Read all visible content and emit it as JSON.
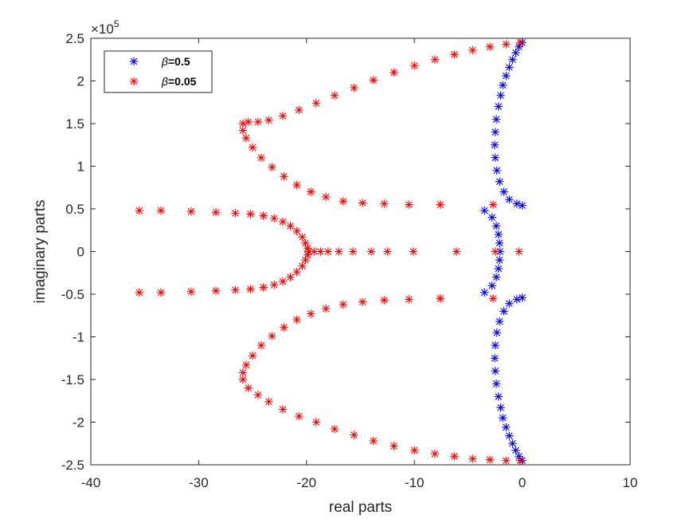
{
  "chart_data": {
    "type": "scatter",
    "xlabel": "real parts",
    "ylabel": "imaginary parts",
    "y_exponent_label": "×10",
    "y_exponent_power": "5",
    "xlim": [
      -40,
      10
    ],
    "ylim": [
      -2.5,
      2.5
    ],
    "y_scale_factor": 100000,
    "xticks": [
      -40,
      -30,
      -20,
      -10,
      0,
      10
    ],
    "xtick_labels": [
      "-40",
      "-30",
      "-20",
      "-10",
      "0",
      "10"
    ],
    "yticks": [
      -2.5,
      -2,
      -1.5,
      -1,
      -0.5,
      0,
      0.5,
      1,
      1.5,
      2,
      2.5
    ],
    "ytick_labels": [
      "-2.5",
      "-2",
      "-1.5",
      "-1",
      "-0.5",
      "0",
      "0.5",
      "1",
      "1.5",
      "2",
      "2.5"
    ],
    "grid": false,
    "legend_placement": "top-left",
    "marker": "*",
    "series": [
      {
        "name": "β=0.5",
        "legend_symbol": "β",
        "legend_rest": "=0.5",
        "color": "#0000ff",
        "points": [
          [
            0.0,
            2.45
          ],
          [
            -0.3,
            2.4
          ],
          [
            -0.6,
            2.33
          ],
          [
            -0.9,
            2.25
          ],
          [
            -1.2,
            2.16
          ],
          [
            -1.5,
            2.06
          ],
          [
            -1.8,
            1.95
          ],
          [
            -2.0,
            1.83
          ],
          [
            -2.2,
            1.7
          ],
          [
            -2.4,
            1.55
          ],
          [
            -2.5,
            1.4
          ],
          [
            -2.55,
            1.25
          ],
          [
            -2.5,
            1.1
          ],
          [
            -2.35,
            0.95
          ],
          [
            -2.1,
            0.82
          ],
          [
            -1.7,
            0.7
          ],
          [
            -1.2,
            0.61
          ],
          [
            -0.5,
            0.56
          ],
          [
            0.0,
            0.54
          ],
          [
            -3.5,
            0.48
          ],
          [
            -2.8,
            0.4
          ],
          [
            -2.4,
            0.3
          ],
          [
            -2.2,
            0.2
          ],
          [
            -2.1,
            0.1
          ],
          [
            -2.05,
            0.0
          ],
          [
            -2.1,
            -0.1
          ],
          [
            -2.2,
            -0.2
          ],
          [
            -2.4,
            -0.3
          ],
          [
            -2.8,
            -0.4
          ],
          [
            -3.5,
            -0.48
          ],
          [
            0.0,
            -0.54
          ],
          [
            -0.5,
            -0.56
          ],
          [
            -1.2,
            -0.61
          ],
          [
            -1.7,
            -0.7
          ],
          [
            -2.1,
            -0.82
          ],
          [
            -2.35,
            -0.95
          ],
          [
            -2.5,
            -1.1
          ],
          [
            -2.55,
            -1.25
          ],
          [
            -2.5,
            -1.4
          ],
          [
            -2.4,
            -1.55
          ],
          [
            -2.2,
            -1.7
          ],
          [
            -2.0,
            -1.83
          ],
          [
            -1.8,
            -1.95
          ],
          [
            -1.5,
            -2.06
          ],
          [
            -1.2,
            -2.16
          ],
          [
            -0.9,
            -2.25
          ],
          [
            -0.6,
            -2.33
          ],
          [
            -0.3,
            -2.4
          ],
          [
            0.0,
            -2.45
          ]
        ]
      },
      {
        "name": "β=0.05",
        "legend_symbol": "β",
        "legend_rest": "=0.05",
        "color": "#ff0000",
        "points": [
          [
            -0.2,
            2.45
          ],
          [
            -1.5,
            2.43
          ],
          [
            -3.0,
            2.4
          ],
          [
            -4.6,
            2.36
          ],
          [
            -6.3,
            2.31
          ],
          [
            -8.1,
            2.25
          ],
          [
            -10.0,
            2.18
          ],
          [
            -11.9,
            2.1
          ],
          [
            -13.8,
            2.01
          ],
          [
            -15.6,
            1.92
          ],
          [
            -17.4,
            1.83
          ],
          [
            -19.1,
            1.74
          ],
          [
            -20.7,
            1.66
          ],
          [
            -22.2,
            1.59
          ],
          [
            -23.5,
            1.54
          ],
          [
            -24.5,
            1.52
          ],
          [
            -25.4,
            1.52
          ],
          [
            -25.9,
            1.5
          ],
          [
            -25.9,
            1.42
          ],
          [
            -25.6,
            1.33
          ],
          [
            -25.0,
            1.22
          ],
          [
            -24.2,
            1.1
          ],
          [
            -23.2,
            0.99
          ],
          [
            -22.1,
            0.88
          ],
          [
            -20.9,
            0.78
          ],
          [
            -19.6,
            0.7
          ],
          [
            -18.2,
            0.64
          ],
          [
            -16.6,
            0.59
          ],
          [
            -14.8,
            0.57
          ],
          [
            -12.8,
            0.56
          ],
          [
            -10.5,
            0.55
          ],
          [
            -7.6,
            0.55
          ],
          [
            -2.7,
            0.55
          ],
          [
            -35.5,
            0.48
          ],
          [
            -33.5,
            0.48
          ],
          [
            -30.7,
            0.47
          ],
          [
            -28.4,
            0.46
          ],
          [
            -26.6,
            0.45
          ],
          [
            -25.2,
            0.44
          ],
          [
            -24.0,
            0.42
          ],
          [
            -23.0,
            0.39
          ],
          [
            -22.2,
            0.35
          ],
          [
            -21.5,
            0.3
          ],
          [
            -20.9,
            0.24
          ],
          [
            -20.4,
            0.17
          ],
          [
            -20.1,
            0.1
          ],
          [
            -19.9,
            0.04
          ],
          [
            -19.8,
            0.0
          ],
          [
            -19.3,
            0.0
          ],
          [
            -18.7,
            0.0
          ],
          [
            -18.0,
            0.0
          ],
          [
            -17.0,
            0.0
          ],
          [
            -15.7,
            0.0
          ],
          [
            -14.0,
            0.0
          ],
          [
            -12.5,
            0.0
          ],
          [
            -10.1,
            0.0
          ],
          [
            -6.1,
            0.0
          ],
          [
            -2.5,
            0.0
          ],
          [
            -0.3,
            0.0
          ],
          [
            -19.9,
            -0.04
          ],
          [
            -20.1,
            -0.1
          ],
          [
            -20.4,
            -0.17
          ],
          [
            -20.9,
            -0.24
          ],
          [
            -21.5,
            -0.3
          ],
          [
            -22.2,
            -0.35
          ],
          [
            -23.0,
            -0.39
          ],
          [
            -24.0,
            -0.42
          ],
          [
            -25.2,
            -0.44
          ],
          [
            -26.6,
            -0.45
          ],
          [
            -28.4,
            -0.46
          ],
          [
            -30.7,
            -0.47
          ],
          [
            -33.5,
            -0.48
          ],
          [
            -35.5,
            -0.48
          ],
          [
            -2.7,
            -0.55
          ],
          [
            -7.6,
            -0.55
          ],
          [
            -10.5,
            -0.56
          ],
          [
            -12.8,
            -0.57
          ],
          [
            -14.8,
            -0.59
          ],
          [
            -16.6,
            -0.62
          ],
          [
            -18.2,
            -0.67
          ],
          [
            -19.6,
            -0.73
          ],
          [
            -20.9,
            -0.8
          ],
          [
            -22.1,
            -0.89
          ],
          [
            -23.2,
            -0.99
          ],
          [
            -24.2,
            -1.1
          ],
          [
            -25.0,
            -1.22
          ],
          [
            -25.6,
            -1.33
          ],
          [
            -25.9,
            -1.42
          ],
          [
            -25.9,
            -1.5
          ],
          [
            -25.4,
            -1.6
          ],
          [
            -24.5,
            -1.68
          ],
          [
            -23.5,
            -1.76
          ],
          [
            -22.2,
            -1.85
          ],
          [
            -20.7,
            -1.93
          ],
          [
            -19.1,
            -2.0
          ],
          [
            -17.4,
            -2.08
          ],
          [
            -15.6,
            -2.15
          ],
          [
            -13.8,
            -2.22
          ],
          [
            -11.9,
            -2.28
          ],
          [
            -10.0,
            -2.33
          ],
          [
            -8.1,
            -2.37
          ],
          [
            -6.3,
            -2.4
          ],
          [
            -4.6,
            -2.43
          ],
          [
            -3.0,
            -2.44
          ],
          [
            -1.5,
            -2.45
          ],
          [
            -0.2,
            -2.45
          ]
        ]
      }
    ]
  }
}
